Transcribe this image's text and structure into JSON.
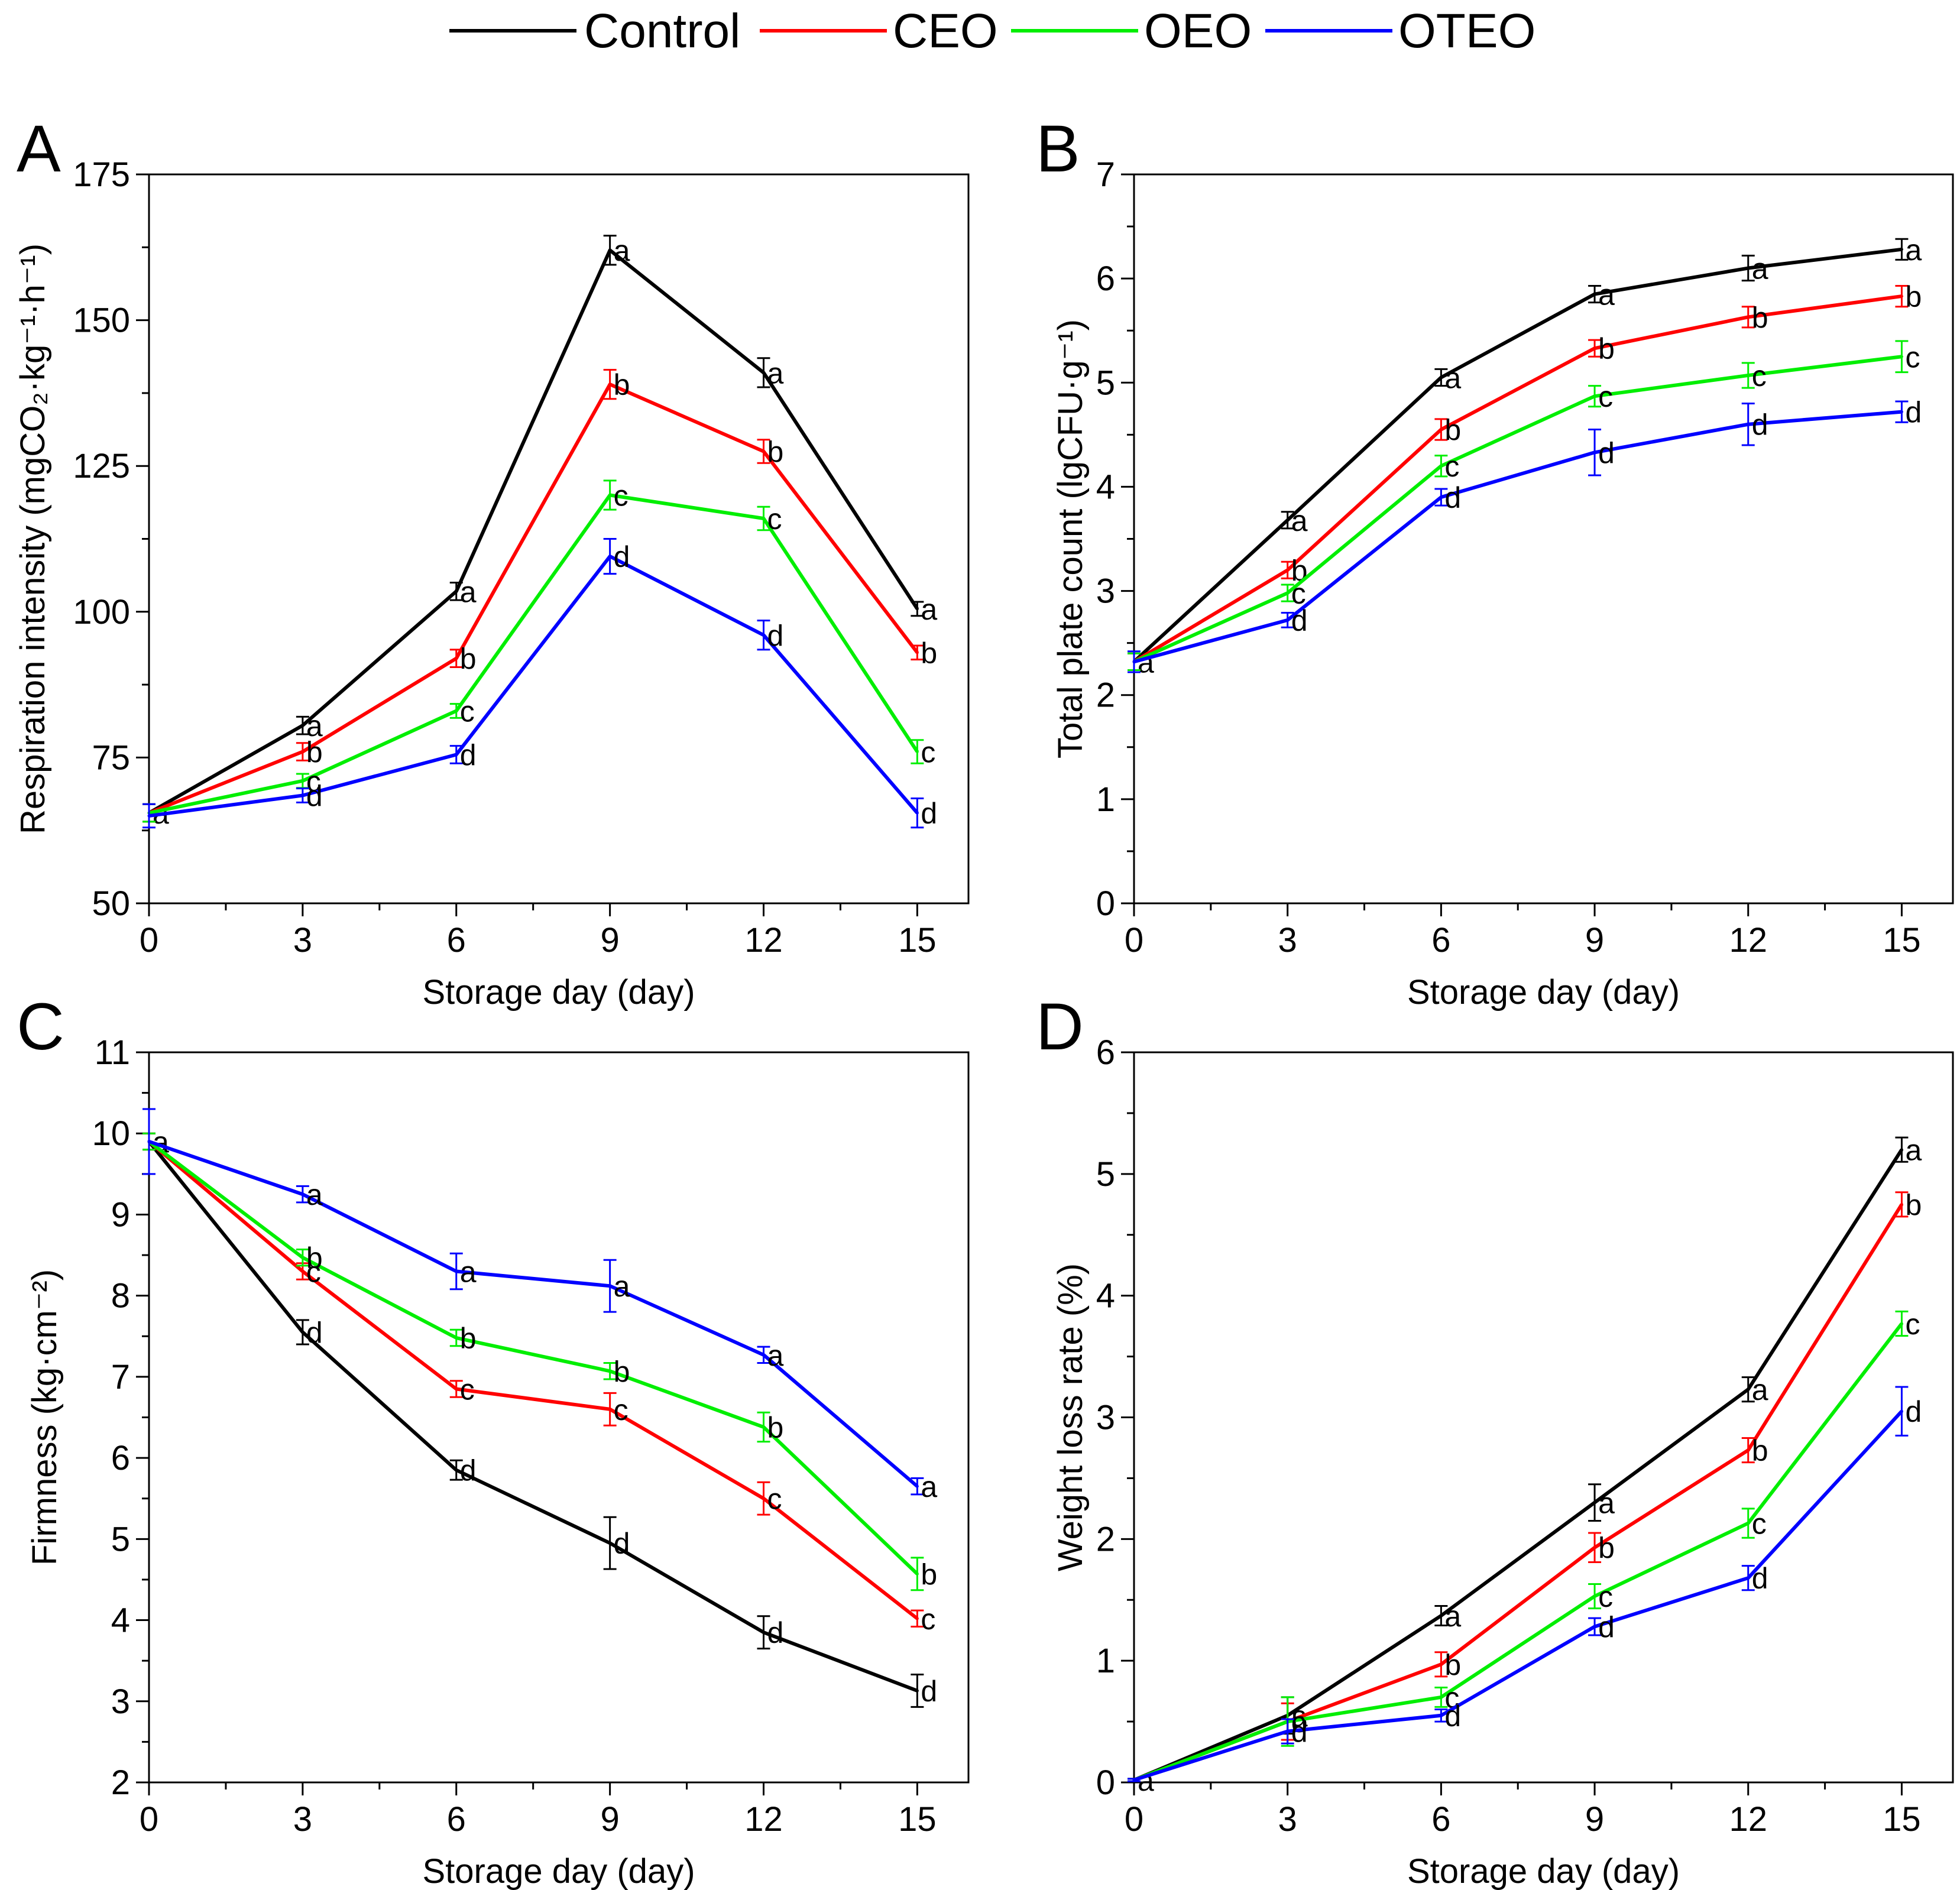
{
  "legend": [
    {
      "name": "Control",
      "color": "#000000"
    },
    {
      "name": "CEO",
      "color": "#ff0000"
    },
    {
      "name": "OEO",
      "color": "#00ee00"
    },
    {
      "name": "OTEO",
      "color": "#0000ff"
    }
  ],
  "chart_data": [
    {
      "panel": "A",
      "type": "line",
      "x": [
        0,
        3,
        6,
        9,
        12,
        15
      ],
      "xlabel": "Storage day (day)",
      "ylabel": "Respiration intensity (mgCO₂·kg⁻¹·h⁻¹)",
      "xlim": [
        0,
        16
      ],
      "ylim": [
        50,
        175
      ],
      "xticks": [
        "0",
        "3",
        "6",
        "9",
        "12",
        "15"
      ],
      "yticks": [
        "50",
        "75",
        "100",
        "125",
        "150",
        "175"
      ],
      "series": [
        {
          "name": "Control",
          "color": "#000000",
          "values": [
            65.5,
            80.5,
            103.5,
            162,
            141,
            100.5
          ],
          "errors": [
            1.5,
            1.5,
            1.5,
            2.5,
            2.5,
            1.2
          ],
          "letters": [
            "a",
            "a",
            "a",
            "a",
            "a",
            "a"
          ]
        },
        {
          "name": "CEO",
          "color": "#ff0000",
          "values": [
            65.5,
            76,
            92,
            139,
            127.5,
            93
          ],
          "errors": [
            1.5,
            1.5,
            1.5,
            2.5,
            2,
            1.2
          ],
          "letters": [
            "a",
            "b",
            "b",
            "b",
            "b",
            "b"
          ]
        },
        {
          "name": "OEO",
          "color": "#00ee00",
          "values": [
            65.5,
            71,
            83,
            120,
            116,
            76
          ],
          "errors": [
            1.5,
            1.2,
            1.2,
            2.5,
            2,
            2
          ],
          "letters": [
            "a",
            "c",
            "c",
            "c",
            "c",
            "c"
          ]
        },
        {
          "name": "OTEO",
          "color": "#0000ff",
          "values": [
            65,
            68.5,
            75.5,
            109.5,
            96,
            65.5
          ],
          "errors": [
            2,
            1.2,
            1.5,
            3,
            2.5,
            2.5
          ],
          "letters": [
            "a",
            "d",
            "d",
            "d",
            "d",
            "d"
          ]
        }
      ]
    },
    {
      "panel": "B",
      "type": "line",
      "x": [
        0,
        3,
        6,
        9,
        12,
        15
      ],
      "xlabel": "Storage day (day)",
      "ylabel": "Total plate count (lgCFU·g⁻¹)",
      "xlim": [
        0,
        16
      ],
      "ylim": [
        0,
        7
      ],
      "xticks": [
        "0",
        "3",
        "6",
        "9",
        "12",
        "15"
      ],
      "yticks": [
        "0",
        "1",
        "2",
        "3",
        "4",
        "5",
        "6",
        "7"
      ],
      "series": [
        {
          "name": "Control",
          "color": "#000000",
          "values": [
            2.32,
            3.68,
            5.05,
            5.85,
            6.1,
            6.28
          ],
          "errors": [
            0.08,
            0.08,
            0.08,
            0.08,
            0.12,
            0.1
          ],
          "letters": [
            "a",
            "a",
            "a",
            "a",
            "a",
            "a"
          ]
        },
        {
          "name": "CEO",
          "color": "#ff0000",
          "values": [
            2.32,
            3.2,
            4.55,
            5.33,
            5.63,
            5.83
          ],
          "errors": [
            0.08,
            0.08,
            0.1,
            0.08,
            0.1,
            0.1
          ],
          "letters": [
            "a",
            "b",
            "b",
            "b",
            "b",
            "b"
          ]
        },
        {
          "name": "OEO",
          "color": "#00ee00",
          "values": [
            2.32,
            2.98,
            4.2,
            4.87,
            5.07,
            5.25
          ],
          "errors": [
            0.08,
            0.08,
            0.1,
            0.1,
            0.12,
            0.15
          ],
          "letters": [
            "a",
            "c",
            "c",
            "c",
            "c",
            "c"
          ]
        },
        {
          "name": "OTEO",
          "color": "#0000ff",
          "values": [
            2.32,
            2.72,
            3.9,
            4.33,
            4.6,
            4.72
          ],
          "errors": [
            0.1,
            0.07,
            0.08,
            0.22,
            0.2,
            0.1
          ],
          "letters": [
            "a",
            "d",
            "d",
            "d",
            "d",
            "d"
          ]
        }
      ]
    },
    {
      "panel": "C",
      "type": "line",
      "x": [
        0,
        3,
        6,
        9,
        12,
        15
      ],
      "xlabel": "Storage day (day)",
      "ylabel": "Firmness (kg·cm⁻²)",
      "xlim": [
        0,
        16
      ],
      "ylim": [
        2,
        11
      ],
      "xticks": [
        "0",
        "3",
        "6",
        "9",
        "12",
        "15"
      ],
      "yticks": [
        "2",
        "3",
        "4",
        "5",
        "6",
        "7",
        "8",
        "9",
        "10",
        "11"
      ],
      "series": [
        {
          "name": "Control",
          "color": "#000000",
          "values": [
            9.9,
            7.55,
            5.85,
            4.95,
            3.85,
            3.13
          ],
          "errors": [
            0.1,
            0.15,
            0.12,
            0.32,
            0.2,
            0.2
          ],
          "letters": [
            "a",
            "d",
            "d",
            "d",
            "d",
            "d"
          ]
        },
        {
          "name": "CEO",
          "color": "#ff0000",
          "values": [
            9.9,
            8.3,
            6.85,
            6.6,
            5.5,
            4.02
          ],
          "errors": [
            0.1,
            0.1,
            0.1,
            0.2,
            0.2,
            0.1
          ],
          "letters": [
            "a",
            "c",
            "c",
            "c",
            "c",
            "c"
          ]
        },
        {
          "name": "OEO",
          "color": "#00ee00",
          "values": [
            9.9,
            8.47,
            7.48,
            7.07,
            6.38,
            4.57
          ],
          "errors": [
            0.1,
            0.1,
            0.1,
            0.1,
            0.18,
            0.2
          ],
          "letters": [
            "a",
            "b",
            "b",
            "b",
            "b",
            "b"
          ]
        },
        {
          "name": "OTEO",
          "color": "#0000ff",
          "values": [
            9.9,
            9.25,
            8.3,
            8.12,
            7.27,
            5.65
          ],
          "errors": [
            0.4,
            0.1,
            0.22,
            0.32,
            0.1,
            0.1
          ],
          "letters": [
            "a",
            "a",
            "a",
            "a",
            "a",
            "a"
          ]
        }
      ]
    },
    {
      "panel": "D",
      "type": "line",
      "x": [
        0,
        3,
        6,
        9,
        12,
        15
      ],
      "xlabel": "Storage day (day)",
      "ylabel": "Weight loss rate (%)",
      "xlim": [
        0,
        16
      ],
      "ylim": [
        0,
        6
      ],
      "xticks": [
        "0",
        "3",
        "6",
        "9",
        "12",
        "15"
      ],
      "yticks": [
        "0",
        "1",
        "2",
        "3",
        "4",
        "5",
        "6"
      ],
      "series": [
        {
          "name": "Control",
          "color": "#000000",
          "values": [
            0.02,
            0.55,
            1.37,
            2.3,
            3.23,
            5.2
          ],
          "errors": [
            0.01,
            0.15,
            0.08,
            0.15,
            0.1,
            0.1
          ],
          "letters": [
            "a",
            "a",
            "a",
            "a",
            "a",
            "a"
          ]
        },
        {
          "name": "CEO",
          "color": "#ff0000",
          "values": [
            0.02,
            0.5,
            0.97,
            1.93,
            2.73,
            4.75
          ],
          "errors": [
            0.01,
            0.15,
            0.1,
            0.12,
            0.1,
            0.1
          ],
          "letters": [
            "a",
            "b",
            "b",
            "b",
            "b",
            "b"
          ]
        },
        {
          "name": "OEO",
          "color": "#00ee00",
          "values": [
            0.02,
            0.5,
            0.7,
            1.53,
            2.13,
            3.77
          ],
          "errors": [
            0.01,
            0.2,
            0.08,
            0.1,
            0.12,
            0.1
          ],
          "letters": [
            "a",
            "c",
            "c",
            "c",
            "c",
            "c"
          ]
        },
        {
          "name": "OTEO",
          "color": "#0000ff",
          "values": [
            0.02,
            0.42,
            0.55,
            1.28,
            1.68,
            3.05
          ],
          "errors": [
            0.01,
            0.1,
            0.05,
            0.07,
            0.1,
            0.2
          ],
          "letters": [
            "a",
            "d",
            "d",
            "d",
            "d",
            "d"
          ]
        }
      ]
    }
  ]
}
